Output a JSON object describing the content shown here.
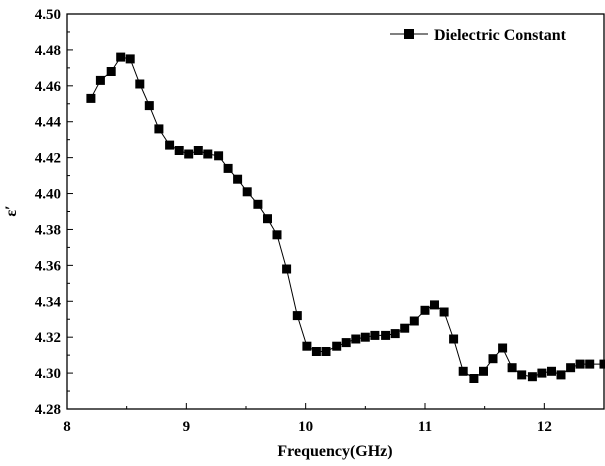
{
  "chart_data": {
    "type": "line",
    "xlabel": "Frequency(GHz)",
    "ylabel": "ε′",
    "xlim": [
      8,
      12.5
    ],
    "ylim": [
      4.28,
      4.5
    ],
    "xticks": [
      8,
      9,
      10,
      11,
      12
    ],
    "xtick_labels": [
      "8",
      "9",
      "10",
      "11",
      "12"
    ],
    "yticks": [
      4.28,
      4.3,
      4.32,
      4.34,
      4.36,
      4.38,
      4.4,
      4.42,
      4.44,
      4.46,
      4.48,
      4.5
    ],
    "ytick_labels": [
      "4.28",
      "4.30",
      "4.32",
      "4.34",
      "4.36",
      "4.38",
      "4.40",
      "4.42",
      "4.44",
      "4.46",
      "4.48",
      "4.50"
    ],
    "grid": false,
    "legend_position": "top-right",
    "series": [
      {
        "name": "Dielectric Constant",
        "marker": "square",
        "color": "#000000",
        "x": [
          8.2,
          8.28,
          8.37,
          8.45,
          8.53,
          8.61,
          8.69,
          8.77,
          8.86,
          8.94,
          9.02,
          9.1,
          9.18,
          9.27,
          9.35,
          9.43,
          9.51,
          9.6,
          9.68,
          9.76,
          9.84,
          9.93,
          10.01,
          10.09,
          10.17,
          10.26,
          10.34,
          10.42,
          10.5,
          10.58,
          10.67,
          10.75,
          10.83,
          10.91,
          11.0,
          11.08,
          11.16,
          11.24,
          11.32,
          11.41,
          11.49,
          11.57,
          11.65,
          11.73,
          11.81,
          11.9,
          11.98,
          12.06,
          12.14,
          12.22,
          12.3,
          12.38,
          12.5
        ],
        "y": [
          4.453,
          4.463,
          4.468,
          4.476,
          4.475,
          4.461,
          4.449,
          4.436,
          4.427,
          4.424,
          4.422,
          4.424,
          4.422,
          4.421,
          4.414,
          4.408,
          4.401,
          4.394,
          4.386,
          4.377,
          4.358,
          4.332,
          4.315,
          4.312,
          4.312,
          4.315,
          4.317,
          4.319,
          4.32,
          4.321,
          4.321,
          4.322,
          4.325,
          4.329,
          4.335,
          4.338,
          4.334,
          4.319,
          4.301,
          4.297,
          4.301,
          4.308,
          4.314,
          4.303,
          4.299,
          4.298,
          4.3,
          4.301,
          4.299,
          4.303,
          4.305,
          4.305,
          4.305
        ]
      }
    ]
  }
}
